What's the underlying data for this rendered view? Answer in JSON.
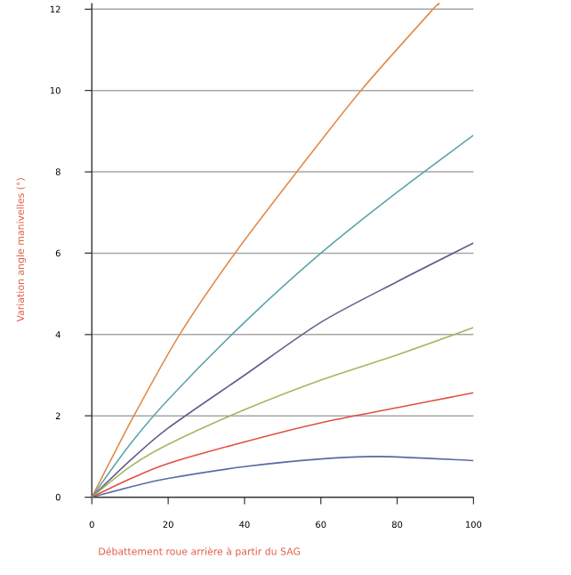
{
  "chart_data": {
    "type": "line",
    "xlabel": "Débattement roue arrière à partir du SAG",
    "ylabel": "Variation angle manivelles (°)",
    "xlim": [
      0,
      100
    ],
    "ylim": [
      0,
      12.15
    ],
    "xticks": [
      0,
      20,
      40,
      60,
      80,
      100
    ],
    "yticks": [
      0,
      2,
      4,
      6,
      8,
      10,
      12
    ],
    "grid": "y",
    "marker": "none",
    "series": [
      {
        "color": "#e08a4a",
        "x": [
          0,
          11,
          23,
          37.5,
          53.7,
          70.5,
          89.4,
          90.7
        ],
        "values": [
          0,
          2,
          4,
          6,
          8,
          10,
          12,
          12.1
        ]
      },
      {
        "color": "#5aa6a8",
        "x": [
          0,
          10,
          20,
          40,
          60,
          80,
          100
        ],
        "values": [
          0,
          1.3,
          2.4,
          4.3,
          6,
          7.5,
          8.9
        ]
      },
      {
        "color": "#6a5a8a",
        "x": [
          0,
          10,
          20,
          40,
          60,
          80,
          100
        ],
        "values": [
          0,
          0.9,
          1.7,
          3.0,
          4.3,
          5.3,
          6.25
        ]
      },
      {
        "color": "#a0b860",
        "x": [
          0,
          10,
          20,
          40,
          60,
          80,
          100
        ],
        "values": [
          0,
          0.75,
          1.3,
          2.15,
          2.88,
          3.5,
          4.17
        ]
      },
      {
        "color": "#e05040",
        "x": [
          0,
          10,
          20,
          40,
          60,
          80,
          100
        ],
        "values": [
          0,
          0.45,
          0.83,
          1.36,
          1.83,
          2.2,
          2.57
        ]
      },
      {
        "color": "#5a6aa0",
        "x": [
          0,
          10,
          20,
          40,
          60,
          75,
          100
        ],
        "values": [
          0,
          0.25,
          0.46,
          0.75,
          0.94,
          1.0,
          0.9
        ]
      }
    ]
  }
}
